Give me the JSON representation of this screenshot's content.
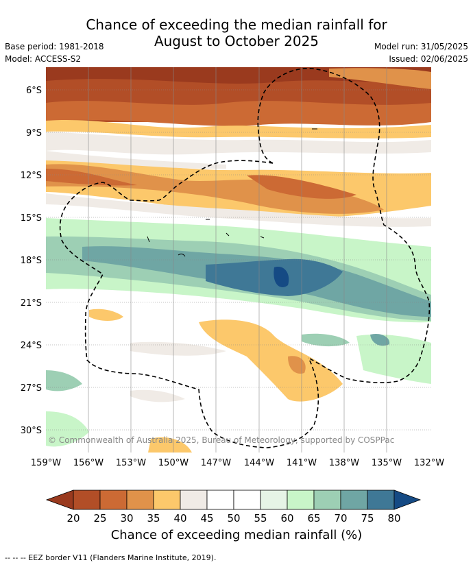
{
  "title_line1": "Chance of exceeding the median rainfall for",
  "title_line2": "August to October 2025",
  "meta_left": {
    "base_period": "Base period: 1981-2018",
    "model": "Model: ACCESS-S2"
  },
  "meta_right": {
    "model_run": "Model run: 31/05/2025",
    "issued": "Issued: 02/06/2025"
  },
  "copyright": "© Commonwealth of Australia 2025, Bureau of Meteorology, supported by COSPPac",
  "lat_labels": [
    "6°S",
    "9°S",
    "12°S",
    "15°S",
    "18°S",
    "21°S",
    "24°S",
    "27°S",
    "30°S"
  ],
  "lon_labels": [
    "159°W",
    "156°W",
    "153°W",
    "150°W",
    "147°W",
    "144°W",
    "141°W",
    "138°W",
    "135°W",
    "132°W"
  ],
  "colorbar": {
    "title": "Chance of exceeding median rainfall (%)",
    "ticks": [
      "20",
      "25",
      "30",
      "35",
      "40",
      "45",
      "50",
      "55",
      "60",
      "65",
      "70",
      "75",
      "80"
    ],
    "colors": [
      "#9a3a1e",
      "#b24e27",
      "#cc6a34",
      "#e0924a",
      "#fcc86b",
      "#f0ebe6",
      "#ffffff",
      "#ffffff",
      "#e6f4e6",
      "#c8f5c8",
      "#9dcfb4",
      "#6fa6a4",
      "#3f7896",
      "#154a84"
    ]
  },
  "legend_footer": "--  --  -- EEZ border V11 (Flanders Marine Institute, 2019)."
}
